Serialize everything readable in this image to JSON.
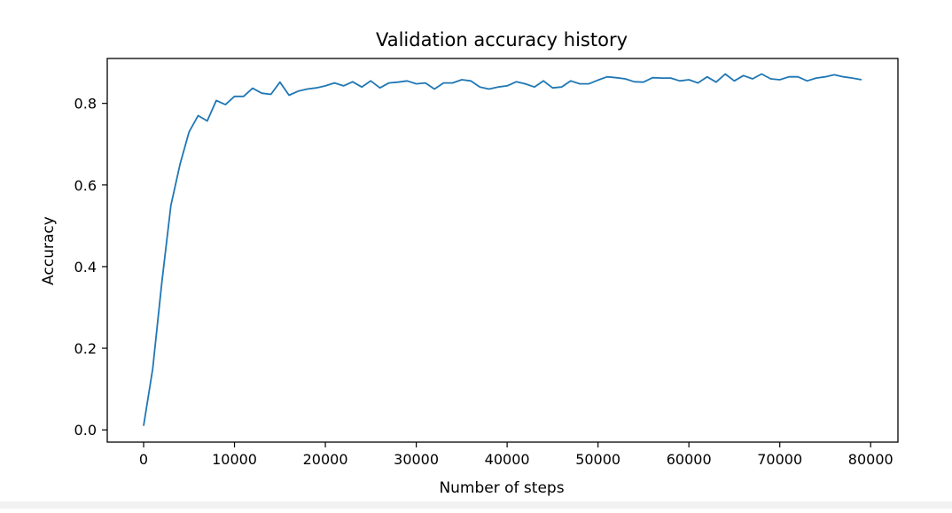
{
  "chart_data": {
    "type": "line",
    "title": "Validation accuracy history",
    "xlabel": "Number of steps",
    "ylabel": "Accuracy",
    "xlim": [
      -4000,
      83000
    ],
    "ylim": [
      -0.03,
      0.91
    ],
    "xticks": [
      0,
      10000,
      20000,
      30000,
      40000,
      50000,
      60000,
      70000,
      80000
    ],
    "yticks": [
      0.0,
      0.2,
      0.4,
      0.6,
      0.8
    ],
    "ytick_labels": [
      "0.0",
      "0.2",
      "0.4",
      "0.6",
      "0.8"
    ],
    "grid": false,
    "color": "#1f77b4",
    "series": [
      {
        "x": [
          0,
          1000,
          2000,
          3000,
          4000,
          5000,
          6000,
          7000,
          8000,
          9000,
          10000,
          11000,
          12000,
          13000,
          14000,
          15000,
          16000,
          17000,
          18000,
          19000,
          20000,
          21000,
          22000,
          23000,
          24000,
          25000,
          26000,
          27000,
          28000,
          29000,
          30000,
          31000,
          32000,
          33000,
          34000,
          35000,
          36000,
          37000,
          38000,
          39000,
          40000,
          41000,
          42000,
          43000,
          44000,
          45000,
          46000,
          47000,
          48000,
          49000,
          50000,
          51000,
          52000,
          53000,
          54000,
          55000,
          56000,
          57000,
          58000,
          59000,
          60000,
          61000,
          62000,
          63000,
          64000,
          65000,
          66000,
          67000,
          68000,
          69000,
          70000,
          71000,
          72000,
          73000,
          74000,
          75000,
          76000,
          77000,
          78000,
          79000
        ],
        "y": [
          0.01,
          0.15,
          0.36,
          0.55,
          0.65,
          0.73,
          0.77,
          0.757,
          0.807,
          0.797,
          0.817,
          0.817,
          0.837,
          0.825,
          0.822,
          0.852,
          0.82,
          0.83,
          0.835,
          0.838,
          0.843,
          0.85,
          0.843,
          0.853,
          0.84,
          0.855,
          0.838,
          0.85,
          0.852,
          0.855,
          0.848,
          0.85,
          0.835,
          0.85,
          0.85,
          0.858,
          0.855,
          0.84,
          0.835,
          0.84,
          0.843,
          0.853,
          0.848,
          0.84,
          0.855,
          0.838,
          0.84,
          0.855,
          0.848,
          0.848,
          0.857,
          0.865,
          0.863,
          0.86,
          0.853,
          0.852,
          0.863,
          0.862,
          0.862,
          0.855,
          0.858,
          0.85,
          0.865,
          0.852,
          0.872,
          0.855,
          0.868,
          0.86,
          0.872,
          0.86,
          0.858,
          0.865,
          0.865,
          0.855,
          0.862,
          0.865,
          0.87,
          0.865,
          0.862,
          0.858
        ]
      }
    ]
  }
}
